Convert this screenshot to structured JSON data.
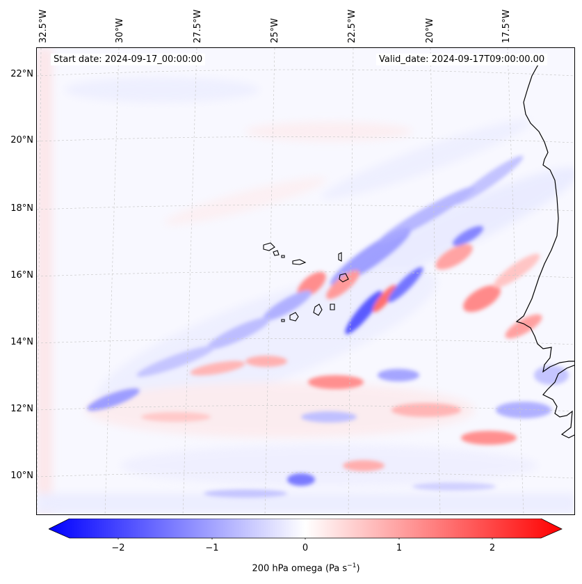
{
  "map": {
    "start_date": "Start date: 2024-09-17_00:00:00",
    "valid_date": "Valid_date: 2024-09-17T09:00:00.00",
    "lon_labels": [
      "32.5°W",
      "30°W",
      "27.5°W",
      "25°W",
      "22.5°W",
      "20°W",
      "17.5°W"
    ],
    "lat_labels": [
      "22°N",
      "20°N",
      "18°N",
      "16°N",
      "14°N",
      "12°N",
      "10°N"
    ],
    "colorbar": {
      "ticks": [
        "−2",
        "−1",
        "0",
        "1",
        "2"
      ],
      "label": "200 hPa omega (Pa s",
      "label_sup": "−1",
      "label_end": ")",
      "min_color": "#0000ff",
      "zero_color": "#ffffff",
      "max_color": "#ff0000"
    }
  }
}
